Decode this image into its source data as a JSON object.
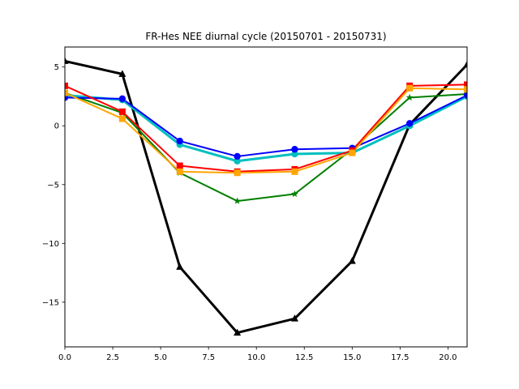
{
  "chart_data": {
    "type": "line",
    "title": "FR-Hes NEE diurnal cycle (20150701 - 20150731)",
    "xlabel": "",
    "ylabel": "",
    "xlim": [
      0,
      21
    ],
    "ylim": [
      -18.8,
      6.7
    ],
    "xticks": [
      0.0,
      2.5,
      5.0,
      7.5,
      10.0,
      12.5,
      15.0,
      17.5,
      20.0
    ],
    "xtick_labels": [
      "0.0",
      "2.5",
      "5.0",
      "7.5",
      "10.0",
      "12.5",
      "15.0",
      "17.5",
      "20.0"
    ],
    "yticks": [
      5,
      0,
      -5,
      -10,
      -15
    ],
    "ytick_labels": [
      "5",
      "0",
      "−5",
      "−10",
      "−15"
    ],
    "grid": false,
    "x": [
      0,
      3,
      6,
      9,
      12,
      15,
      18,
      21
    ],
    "series": [
      {
        "values": [
          5.5,
          4.4,
          -12.0,
          -17.6,
          -16.4,
          -11.5,
          0.1,
          5.2
        ],
        "color": "#000000",
        "marker": "triangle",
        "width": 3
      },
      {
        "values": [
          2.8,
          1.1,
          -4.0,
          -6.4,
          -5.8,
          -2.0,
          2.4,
          2.7
        ],
        "color": "#008000",
        "marker": "star",
        "width": 2
      },
      {
        "values": [
          2.6,
          2.2,
          -1.6,
          -3.0,
          -2.4,
          -2.3,
          0.0,
          2.5
        ],
        "color": "#00bfbf",
        "marker": "circle",
        "width": 3
      },
      {
        "values": [
          2.4,
          2.3,
          -1.3,
          -2.6,
          -2.0,
          -1.9,
          0.2,
          2.6
        ],
        "color": "#0000ff",
        "marker": "circle",
        "width": 2
      },
      {
        "values": [
          3.4,
          1.2,
          -3.4,
          -3.9,
          -3.7,
          -2.1,
          3.4,
          3.5
        ],
        "color": "#ff0000",
        "marker": "square",
        "width": 2
      },
      {
        "values": [
          2.8,
          0.6,
          -3.9,
          -4.0,
          -3.9,
          -2.3,
          3.2,
          3.1
        ],
        "color": "#ffa500",
        "marker": "square",
        "width": 2
      }
    ]
  }
}
